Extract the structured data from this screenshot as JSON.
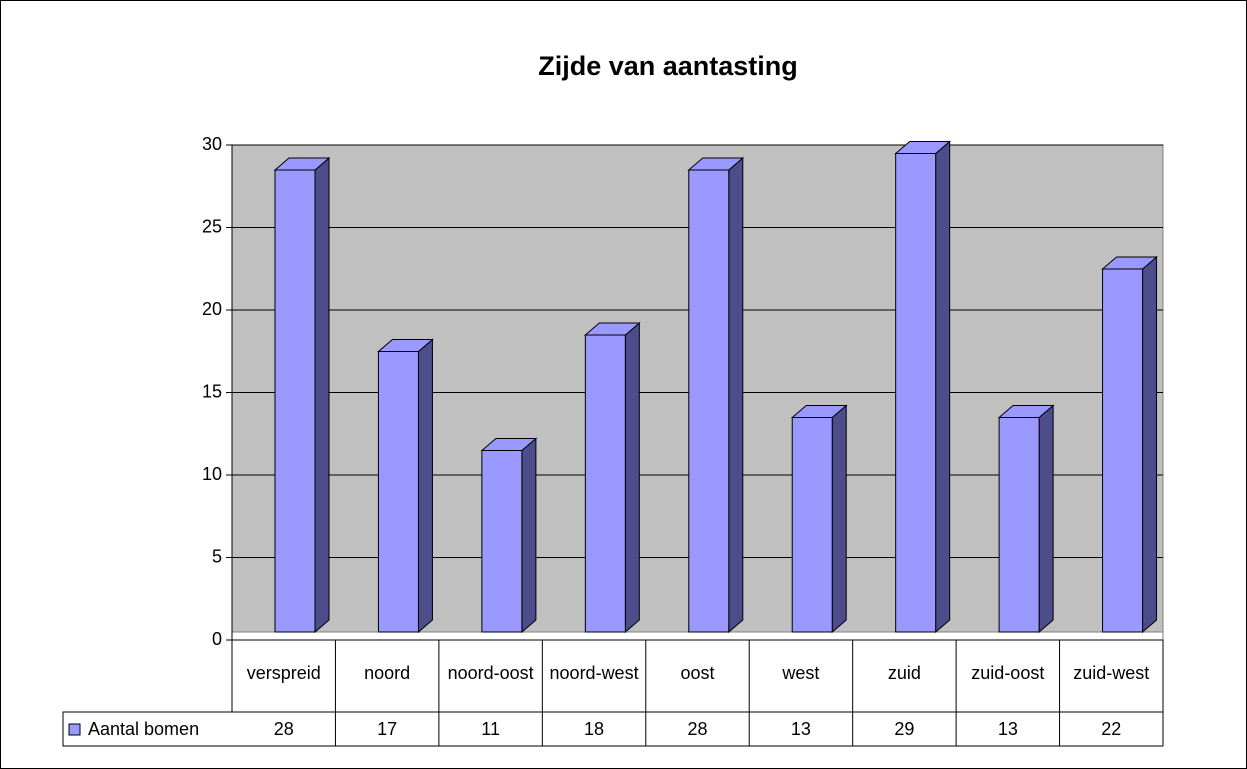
{
  "chart_data": {
    "type": "bar3d",
    "title": "Zijde van aantasting",
    "categories": [
      "verspreid",
      "noord",
      "noord-oost",
      "noord-west",
      "oost",
      "west",
      "zuid",
      "zuid-oost",
      "zuid-west"
    ],
    "series": [
      {
        "name": "Aantal bomen",
        "color": "#9999ff",
        "values": [
          28,
          17,
          11,
          18,
          28,
          13,
          29,
          13,
          22
        ]
      }
    ],
    "ylim": [
      0,
      30
    ],
    "yticks": [
      0,
      5,
      10,
      15,
      20,
      25,
      30
    ],
    "grid": true
  }
}
